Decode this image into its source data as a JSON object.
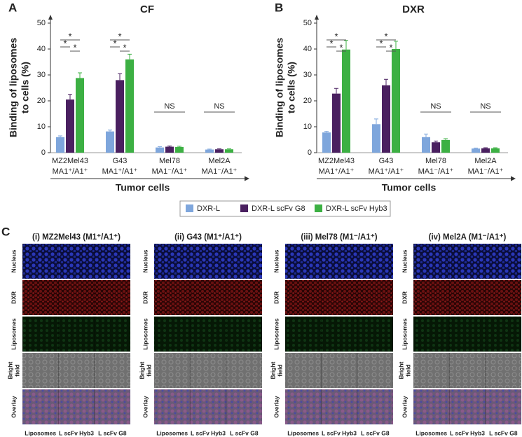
{
  "chart_data": [
    {
      "type": "bar",
      "panel": "A",
      "title": "CF",
      "y_label": [
        "Binding of liposomes",
        "to cells (%)"
      ],
      "x_label": "Tumor cells",
      "categories": [
        "MZ2Mel43",
        "G43",
        "Mel78",
        "Mel2A"
      ],
      "phenotypes": [
        "MA1⁺/A1⁺",
        "MA1⁺/A1⁺",
        "MA1⁻/A1⁺",
        "MA1⁻/A1⁺"
      ],
      "ylim": [
        0,
        50
      ],
      "yticks": [
        0,
        10,
        20,
        30,
        40,
        50
      ],
      "series": [
        {
          "name": "DXR-L",
          "color": "#7ea6dc",
          "values": [
            6,
            8.2,
            2,
            1.2
          ],
          "errors": [
            0.5,
            0.5,
            0.3,
            0.2
          ]
        },
        {
          "name": "DXR-L scFv G8",
          "color": "#4a2060",
          "values": [
            20.5,
            28,
            2.3,
            1.3
          ],
          "errors": [
            2,
            2.5,
            0.3,
            0.2
          ]
        },
        {
          "name": "DXR-L scFv Hyb3",
          "color": "#3cb043",
          "values": [
            28.8,
            36,
            2.2,
            1.3
          ],
          "errors": [
            2,
            2,
            0.3,
            0.2
          ]
        }
      ],
      "significance": [
        [
          "*",
          "*",
          "*"
        ],
        [
          "*",
          "*",
          "*"
        ],
        [
          "NS"
        ],
        [
          "NS"
        ]
      ]
    },
    {
      "type": "bar",
      "panel": "B",
      "title": "DXR",
      "y_label": [
        "Binding of liposomes",
        "to cells (%)"
      ],
      "x_label": "Tumor cells",
      "categories": [
        "MZ2Mel43",
        "G43",
        "Mel78",
        "Mel2A"
      ],
      "phenotypes": [
        "MA1⁺/A1⁺",
        "MA1⁺/A1⁺",
        "MA1⁻/A1⁺",
        "MA1⁻/A1⁺"
      ],
      "ylim": [
        0,
        50
      ],
      "yticks": [
        0,
        10,
        20,
        30,
        40,
        50
      ],
      "series": [
        {
          "color": "#7ea6dc",
          "values": [
            7.8,
            11,
            6,
            1.6
          ],
          "errors": [
            0.4,
            2,
            1.2,
            0.2
          ]
        },
        {
          "color": "#4a2060",
          "values": [
            22.8,
            26,
            4,
            1.7
          ],
          "errors": [
            2,
            2.3,
            0.5,
            0.2
          ]
        },
        {
          "color": "#3cb043",
          "values": [
            39.8,
            40,
            4.9,
            1.7
          ],
          "errors": [
            3.5,
            3,
            0.5,
            0.2
          ]
        }
      ],
      "significance": [
        [
          "*",
          "*",
          "*"
        ],
        [
          "*",
          "*",
          "*"
        ],
        [
          "NS"
        ],
        [
          "NS"
        ]
      ]
    }
  ],
  "panel_c": {
    "letter": "C",
    "titles": [
      "(i) MZ2Mel43 (M1⁺/A1⁺)",
      "(ii) G43 (M1⁺/A1⁺)",
      "(iii) Mel78 (M1⁻/A1⁺)",
      "(iv) Mel2A (M1⁻/A1⁺)"
    ],
    "rows": [
      [
        "Nucleus"
      ],
      [
        "DXR"
      ],
      [
        "Liposomes"
      ],
      [
        "Bright",
        "field"
      ],
      [
        "Overlay"
      ]
    ],
    "columns": [
      "Liposomes",
      "L scFv Hyb3",
      "L scFv G8"
    ]
  }
}
